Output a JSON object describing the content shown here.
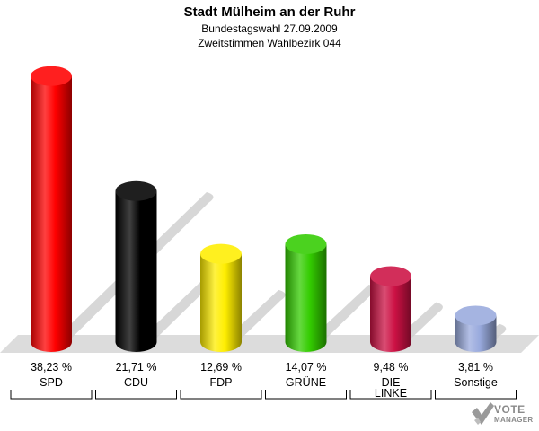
{
  "header": {
    "title": "Stadt Mülheim an der Ruhr",
    "subtitle1": "Bundestagswahl 27.09.2009",
    "subtitle2": "Zweitstimmen Wahlbezirk 044"
  },
  "chart_data": {
    "type": "bar",
    "title": "Stadt Mülheim an der Ruhr",
    "categories": [
      "SPD",
      "CDU",
      "FDP",
      "GRÜNE",
      "DIE LINKE",
      "Sonstige"
    ],
    "category_lines": [
      [
        "SPD"
      ],
      [
        "CDU"
      ],
      [
        "FDP"
      ],
      [
        "GRÜNE"
      ],
      [
        "DIE",
        "LINKE"
      ],
      [
        "Sonstige"
      ]
    ],
    "values": [
      38.23,
      21.71,
      12.69,
      14.07,
      9.48,
      3.81
    ],
    "value_labels": [
      "38,23 %",
      "21,71 %",
      "12,69 %",
      "14,07 %",
      "9,48 %",
      "3,81 %"
    ],
    "colors": [
      "#ff0000",
      "#000000",
      "#ffee00",
      "#33cc00",
      "#cc1144",
      "#99aadd"
    ],
    "style": "3d-cylinder",
    "grid": false,
    "legend": "none"
  },
  "logo": {
    "line1": "VOTE",
    "line2": "MANAGER"
  }
}
